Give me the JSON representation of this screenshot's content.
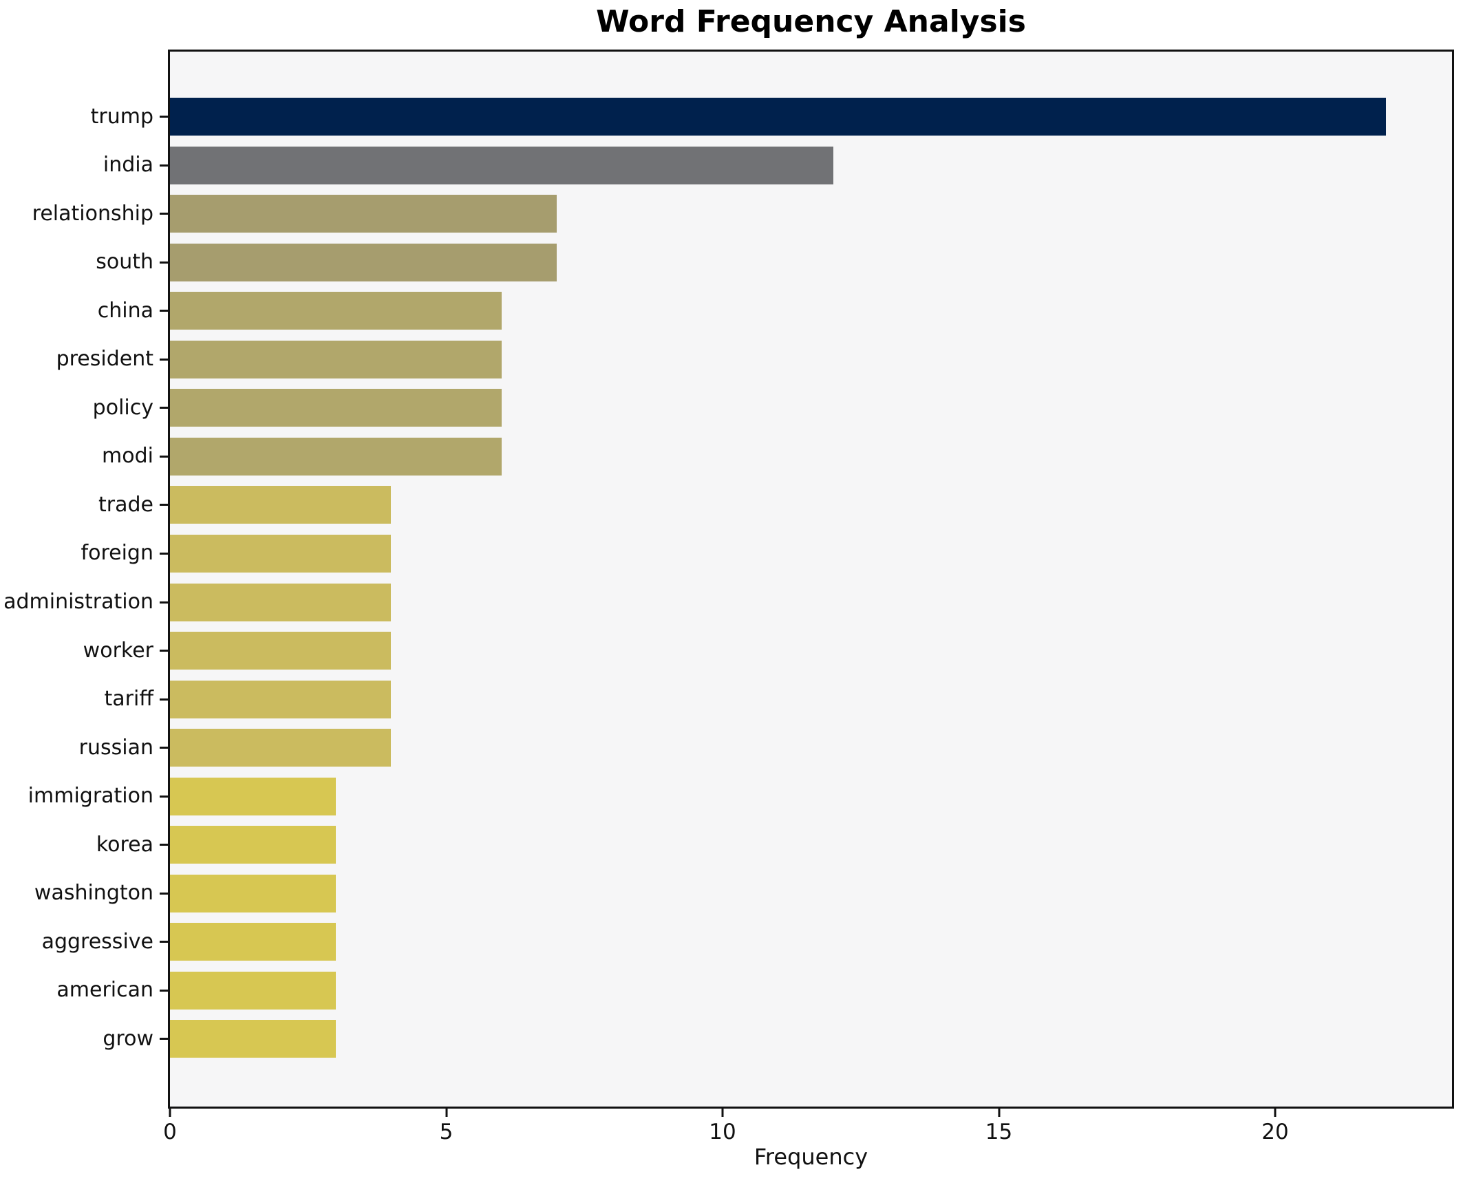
{
  "chart_data": {
    "type": "bar",
    "orientation": "horizontal",
    "title": "Word Frequency Analysis",
    "xlabel": "Frequency",
    "ylabel": "",
    "categories": [
      "trump",
      "india",
      "relationship",
      "south",
      "china",
      "president",
      "policy",
      "modi",
      "trade",
      "foreign",
      "administration",
      "worker",
      "tariff",
      "russian",
      "immigration",
      "korea",
      "washington",
      "aggressive",
      "american",
      "grow"
    ],
    "values": [
      22,
      12,
      7,
      7,
      6,
      6,
      6,
      6,
      4,
      4,
      4,
      4,
      4,
      4,
      3,
      3,
      3,
      3,
      3,
      3
    ],
    "bar_colors": [
      "#00214d",
      "#717275",
      "#a69d6e",
      "#a69d6e",
      "#b1a76b",
      "#b1a76b",
      "#b1a76b",
      "#b1a76b",
      "#cbbb5f",
      "#cbbb5f",
      "#cbbb5f",
      "#cbbb5f",
      "#cbbb5f",
      "#cbbb5f",
      "#d7c752",
      "#d7c752",
      "#d7c752",
      "#d7c752",
      "#d7c752",
      "#d7c752"
    ],
    "xticks": [
      0,
      5,
      10,
      15,
      20
    ],
    "xlim": [
      0,
      23.2
    ],
    "grid": false,
    "legend_position": "none",
    "plot_background": "#f6f6f7",
    "colormap_note": "cividis ramp, darker bar = higher frequency"
  }
}
